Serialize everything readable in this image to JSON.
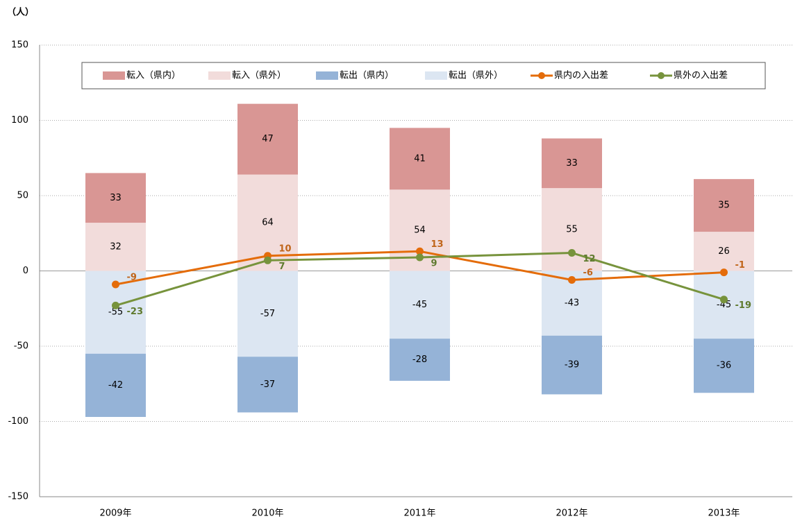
{
  "chart_data": {
    "type": "bar",
    "stacked": true,
    "y_label": "（人）",
    "categories": [
      "2009年",
      "2010年",
      "2011年",
      "2012年",
      "2013年"
    ],
    "ylim": [
      -150,
      150
    ],
    "yticks": [
      -150,
      -100,
      -50,
      0,
      50,
      100,
      150
    ],
    "grid": true,
    "legend": "top",
    "series": [
      {
        "name": "転入（県内）",
        "type": "bar",
        "color": "#d99694",
        "values": [
          33,
          47,
          41,
          33,
          35
        ]
      },
      {
        "name": "転入（県外）",
        "type": "bar",
        "color": "#f2dcdb",
        "values": [
          32,
          64,
          54,
          55,
          26
        ]
      },
      {
        "name": "転出（県内）",
        "type": "bar",
        "color": "#95b3d7",
        "values": [
          -42,
          -37,
          -28,
          -39,
          -36
        ]
      },
      {
        "name": "転出（県外）",
        "type": "bar",
        "color": "#dce6f2",
        "values": [
          -55,
          -57,
          -45,
          -43,
          -45
        ]
      },
      {
        "name": "県内の入出差",
        "type": "line",
        "color": "#e46c0a",
        "label_color": "#c0651a",
        "values": [
          -9,
          10,
          13,
          -6,
          -1
        ]
      },
      {
        "name": "県外の入出差",
        "type": "line",
        "color": "#77933c",
        "label_color": "#5f7a2e",
        "values": [
          -23,
          7,
          9,
          12,
          -19
        ]
      }
    ]
  }
}
